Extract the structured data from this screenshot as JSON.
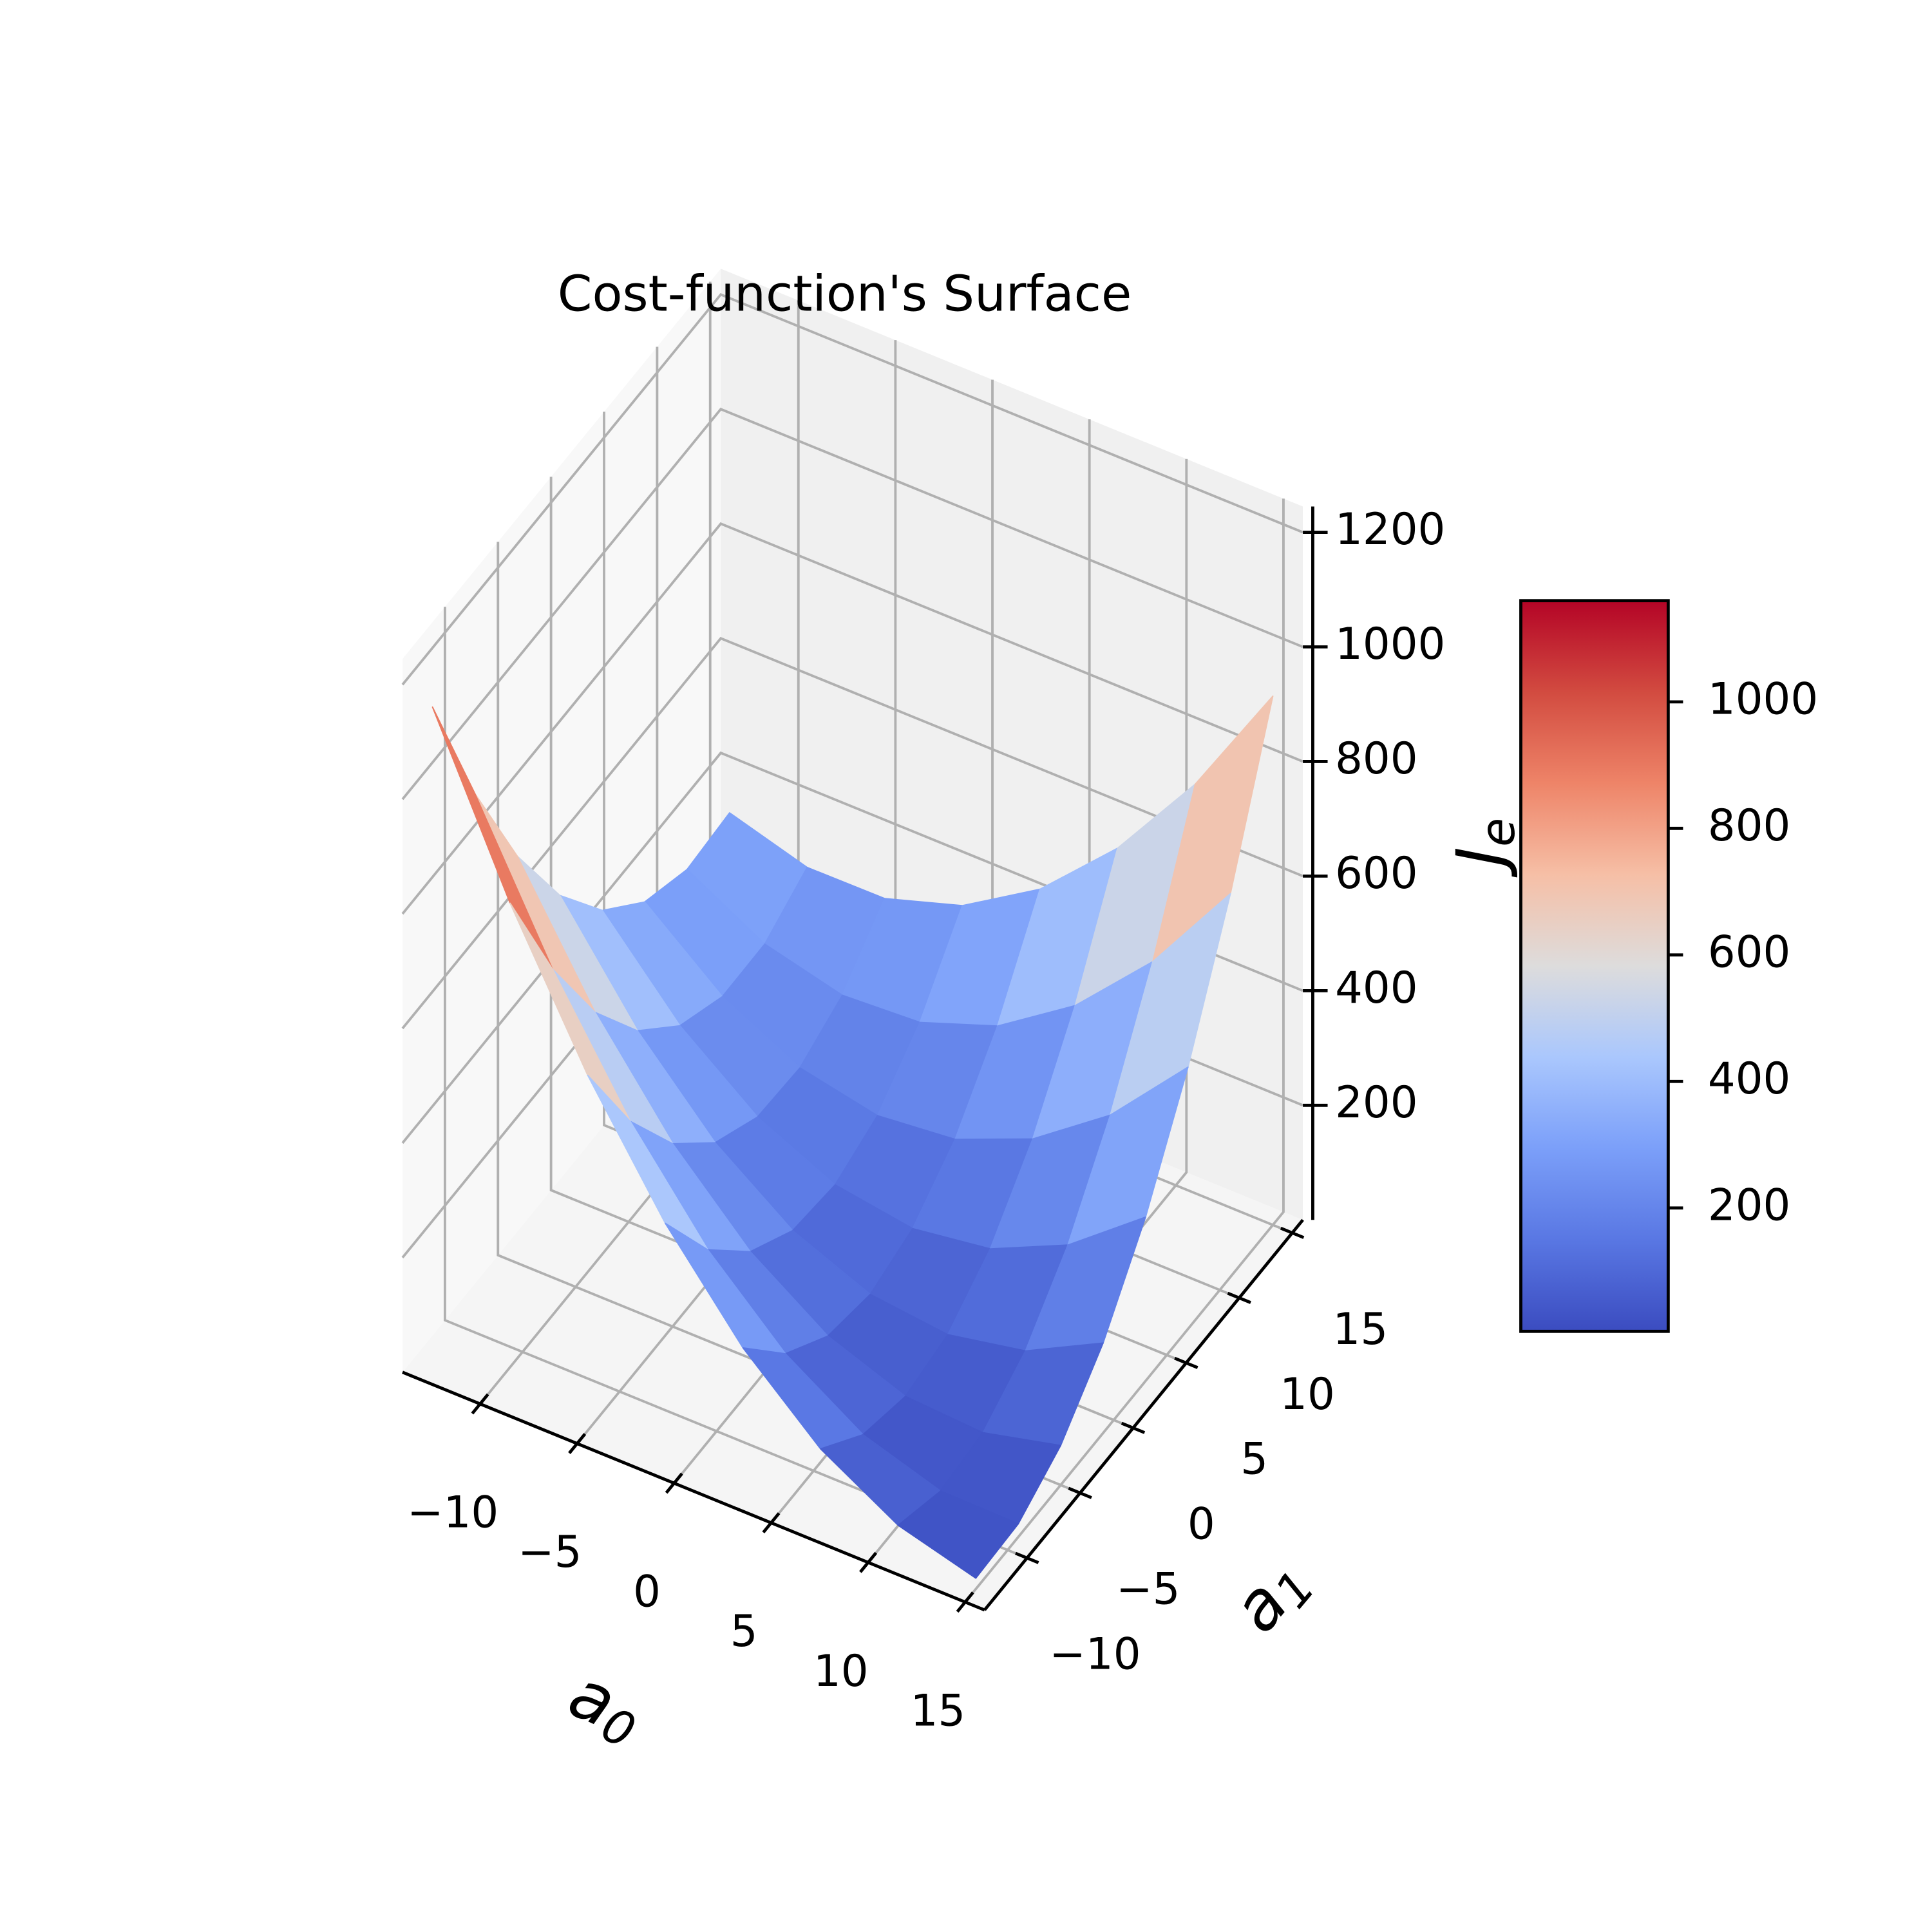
{
  "chart_data": {
    "type": "surface",
    "title": "Cost-function's Surface",
    "xlabel": {
      "text": "a",
      "subscript": "0"
    },
    "ylabel": {
      "text": "a",
      "subscript": "1"
    },
    "zlabel": {
      "text": "J",
      "subscript": "e"
    },
    "x": [
      -13,
      -9,
      -5,
      -1,
      3,
      7,
      11,
      15
    ],
    "y": [
      -13,
      -9,
      -5,
      -1,
      3,
      7,
      11,
      15
    ],
    "z": [
      [
        1152,
        865,
        620,
        417,
        255,
        134,
        56,
        19
      ],
      [
        910,
        659,
        449,
        280,
        154,
        68,
        25,
        23
      ],
      [
        710,
        493,
        319,
        186,
        94,
        44,
        36,
        69
      ],
      [
        551,
        370,
        230,
        132,
        76,
        61,
        88,
        157
      ],
      [
        434,
        288,
        184,
        121,
        100,
        120,
        182,
        286
      ],
      [
        358,
        248,
        179,
        151,
        165,
        221,
        318,
        457
      ],
      [
        324,
        249,
        215,
        223,
        272,
        363,
        495,
        669
      ],
      [
        332,
        292,
        293,
        336,
        420,
        547,
        714,
        923
      ]
    ],
    "colormap": "coolwarm",
    "xlim": [
      -14,
      16
    ],
    "ylim": [
      -14,
      16
    ],
    "zlim": [
      0,
      1245
    ],
    "xticks": [
      {
        "value": -10,
        "label": "−10"
      },
      {
        "value": -5,
        "label": "−5"
      },
      0,
      5,
      10,
      15
    ],
    "yticks": [
      {
        "value": -10,
        "label": "−10"
      },
      {
        "value": -5,
        "label": "−5"
      },
      0,
      5,
      10,
      15
    ],
    "zticks": [
      200,
      400,
      600,
      800,
      1000,
      1200
    ],
    "grid": true,
    "colorbar": {
      "clim": [
        5,
        1160
      ],
      "ticks": [
        200,
        400,
        600,
        800,
        1000
      ]
    }
  }
}
